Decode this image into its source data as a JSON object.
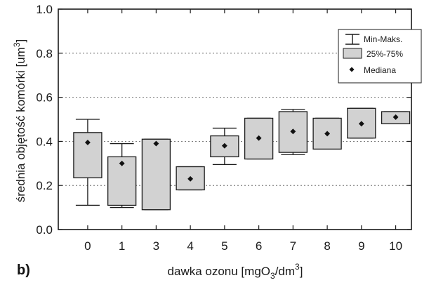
{
  "chart_data": {
    "type": "box",
    "panel_label": "b)",
    "xlabel": {
      "main": "dawka ozonu [mgO",
      "sub": "3",
      "mid": "/dm",
      "sup": "3",
      "end": "]"
    },
    "ylabel": {
      "main": "średnia objętość komórki [um",
      "sup": "3",
      "end": "]"
    },
    "ylim": [
      0,
      1.0
    ],
    "y_ticks": [
      "0.0",
      "0.2",
      "0.4",
      "0.6",
      "0.8",
      "1.0"
    ],
    "grid": "horizontal dashed",
    "legend_position": "top-right",
    "legend": {
      "whisker": "Min-Maks.",
      "box": "25%-75%",
      "median": "Mediana"
    },
    "categories": [
      "0",
      "1",
      "3",
      "4",
      "5",
      "6",
      "7",
      "8",
      "9",
      "10"
    ],
    "boxes": [
      {
        "min": 0.11,
        "q1": 0.235,
        "median": 0.395,
        "q3": 0.44,
        "max": 0.5
      },
      {
        "min": 0.1,
        "q1": 0.11,
        "median": 0.3,
        "q3": 0.33,
        "max": 0.39
      },
      {
        "min": 0.09,
        "q1": 0.09,
        "median": 0.39,
        "q3": 0.41,
        "max": 0.41
      },
      {
        "min": 0.18,
        "q1": 0.18,
        "median": 0.23,
        "q3": 0.285,
        "max": 0.285
      },
      {
        "min": 0.295,
        "q1": 0.33,
        "median": 0.38,
        "q3": 0.425,
        "max": 0.46
      },
      {
        "min": 0.32,
        "q1": 0.32,
        "median": 0.415,
        "q3": 0.505,
        "max": 0.505
      },
      {
        "min": 0.34,
        "q1": 0.35,
        "median": 0.445,
        "q3": 0.535,
        "max": 0.545
      },
      {
        "min": 0.365,
        "q1": 0.365,
        "median": 0.435,
        "q3": 0.505,
        "max": 0.505
      },
      {
        "min": 0.415,
        "q1": 0.415,
        "median": 0.48,
        "q3": 0.55,
        "max": 0.55
      },
      {
        "min": 0.48,
        "q1": 0.48,
        "median": 0.51,
        "q3": 0.535,
        "max": 0.535
      }
    ],
    "colors": {
      "box_fill": "#d2d2d2",
      "stroke": "#1a1a1a",
      "grid": "#555555",
      "median_marker": "#111111"
    }
  }
}
